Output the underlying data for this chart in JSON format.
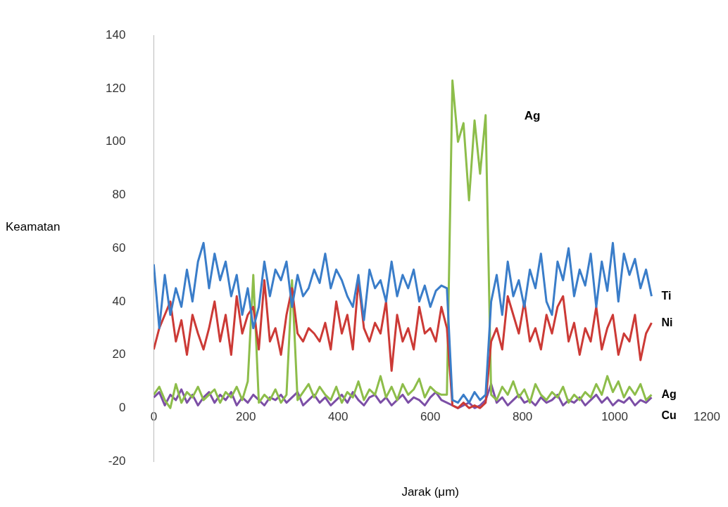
{
  "chart_data": {
    "type": "line",
    "xlabel": "Jarak (μm)",
    "ylabel": "Keamatan",
    "xlim": [
      0,
      1200
    ],
    "xticks": [
      0,
      200,
      400,
      600,
      800,
      1000,
      1200
    ],
    "ylim": [
      -20,
      140
    ],
    "yticks": [
      -20,
      0,
      20,
      40,
      60,
      80,
      100,
      120,
      140
    ],
    "grid": false,
    "legend": false,
    "marker": "none",
    "line_style": "solid",
    "annotations": [
      "Ag"
    ],
    "x": [
      0,
      12,
      24,
      36,
      48,
      60,
      72,
      84,
      96,
      108,
      120,
      132,
      144,
      156,
      168,
      180,
      192,
      204,
      216,
      228,
      240,
      252,
      264,
      276,
      288,
      300,
      312,
      324,
      336,
      348,
      360,
      372,
      384,
      396,
      408,
      420,
      432,
      444,
      456,
      468,
      480,
      492,
      504,
      516,
      528,
      540,
      552,
      564,
      576,
      588,
      600,
      612,
      624,
      636,
      648,
      660,
      672,
      684,
      696,
      708,
      720,
      732,
      744,
      756,
      768,
      780,
      792,
      804,
      816,
      828,
      840,
      852,
      864,
      876,
      888,
      900,
      912,
      924,
      936,
      948,
      960,
      972,
      984,
      996,
      1008,
      1020,
      1032,
      1044,
      1056,
      1068,
      1080
    ],
    "series": [
      {
        "name": "Ti",
        "color": "#3a7dc9",
        "values": [
          54,
          30,
          50,
          35,
          45,
          38,
          52,
          40,
          55,
          62,
          45,
          58,
          48,
          55,
          42,
          50,
          35,
          45,
          30,
          38,
          55,
          42,
          52,
          48,
          55,
          38,
          50,
          42,
          45,
          52,
          47,
          58,
          45,
          52,
          48,
          42,
          38,
          50,
          33,
          52,
          45,
          48,
          40,
          55,
          42,
          50,
          45,
          52,
          40,
          46,
          38,
          44,
          46,
          45,
          3,
          2,
          5,
          2,
          6,
          3,
          5,
          40,
          50,
          35,
          55,
          42,
          48,
          38,
          52,
          45,
          58,
          40,
          35,
          55,
          48,
          60,
          42,
          52,
          46,
          58,
          38,
          55,
          44,
          62,
          40,
          58,
          50,
          56,
          45,
          52,
          42
        ]
      },
      {
        "name": "Ni",
        "color": "#cc3a36",
        "values": [
          22,
          30,
          35,
          40,
          25,
          33,
          20,
          35,
          28,
          22,
          30,
          40,
          25,
          35,
          20,
          42,
          28,
          35,
          38,
          22,
          48,
          25,
          30,
          20,
          35,
          45,
          28,
          25,
          30,
          28,
          25,
          32,
          22,
          40,
          28,
          35,
          22,
          48,
          30,
          25,
          32,
          28,
          40,
          14,
          35,
          25,
          30,
          22,
          38,
          28,
          30,
          25,
          38,
          30,
          1,
          0,
          2,
          0,
          1,
          0,
          2,
          25,
          30,
          22,
          42,
          35,
          28,
          40,
          25,
          30,
          22,
          35,
          28,
          38,
          42,
          25,
          32,
          20,
          30,
          25,
          38,
          22,
          30,
          35,
          20,
          28,
          25,
          35,
          18,
          28,
          32
        ]
      },
      {
        "name": "Ag",
        "color": "#8dbd4a",
        "values": [
          5,
          8,
          3,
          0,
          9,
          2,
          6,
          4,
          8,
          3,
          5,
          7,
          2,
          6,
          4,
          8,
          3,
          10,
          50,
          2,
          5,
          3,
          7,
          2,
          5,
          48,
          3,
          6,
          9,
          4,
          8,
          5,
          3,
          8,
          2,
          6,
          4,
          10,
          3,
          7,
          5,
          12,
          4,
          8,
          3,
          9,
          5,
          7,
          11,
          4,
          8,
          6,
          5,
          5,
          123,
          100,
          107,
          78,
          108,
          88,
          110,
          5,
          3,
          8,
          5,
          10,
          4,
          7,
          2,
          9,
          5,
          3,
          6,
          4,
          8,
          2,
          5,
          3,
          6,
          4,
          9,
          5,
          12,
          6,
          10,
          4,
          8,
          5,
          9,
          3,
          5
        ]
      },
      {
        "name": "Cu",
        "color": "#7c4fa6",
        "values": [
          4,
          6,
          1,
          5,
          3,
          7,
          2,
          5,
          1,
          4,
          6,
          2,
          5,
          3,
          6,
          1,
          4,
          2,
          5,
          3,
          1,
          4,
          3,
          5,
          2,
          4,
          6,
          1,
          3,
          5,
          2,
          4,
          1,
          3,
          5,
          2,
          6,
          3,
          1,
          4,
          5,
          2,
          4,
          1,
          3,
          5,
          2,
          4,
          3,
          1,
          4,
          6,
          3,
          2,
          1,
          0,
          1,
          2,
          0,
          1,
          3,
          9,
          2,
          4,
          1,
          3,
          5,
          2,
          3,
          1,
          4,
          2,
          3,
          5,
          1,
          3,
          2,
          4,
          1,
          3,
          5,
          2,
          4,
          1,
          3,
          2,
          4,
          1,
          3,
          2,
          4
        ]
      }
    ]
  }
}
